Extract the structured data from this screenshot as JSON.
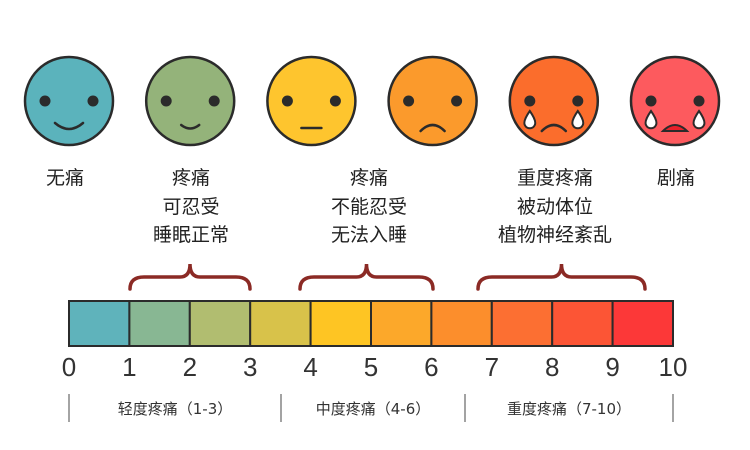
{
  "faces": [
    {
      "name": "no-pain",
      "color": "#5bb3bc",
      "mouth": "smile"
    },
    {
      "name": "tolerable",
      "color": "#94b37a",
      "mouth": "small-smile"
    },
    {
      "name": "neutral",
      "color": "#fec52e",
      "mouth": "flat"
    },
    {
      "name": "sad",
      "color": "#fb9a2c",
      "mouth": "frown"
    },
    {
      "name": "crying",
      "color": "#fb6d2c",
      "mouth": "frown",
      "tears": true
    },
    {
      "name": "severe-crying",
      "color": "#fd5a5e",
      "mouth": "open",
      "tears": true
    }
  ],
  "labels": {
    "none": [
      "无痛"
    ],
    "mild": [
      "疼痛",
      "可忍受",
      "睡眠正常"
    ],
    "moderate": [
      "疼痛",
      "不能忍受",
      "无法入睡"
    ],
    "severe": [
      "重度疼痛",
      "被动体位",
      "植物神经紊乱"
    ],
    "worst": [
      "剧痛"
    ]
  },
  "scale_colors": [
    "#5fb3bb",
    "#88b793",
    "#b1bd70",
    "#d8c24a",
    "#fec523",
    "#fca82a",
    "#fc8e2c",
    "#fc6f32",
    "#fc5535",
    "#fc3838"
  ],
  "ticks": [
    "0",
    "1",
    "2",
    "3",
    "4",
    "5",
    "6",
    "7",
    "8",
    "9",
    "10"
  ],
  "categories": [
    "轻度疼痛（1-3）",
    "中度疼痛（4-6）",
    "重度疼痛（7-10）"
  ],
  "bracket_color": "#8b2a25"
}
